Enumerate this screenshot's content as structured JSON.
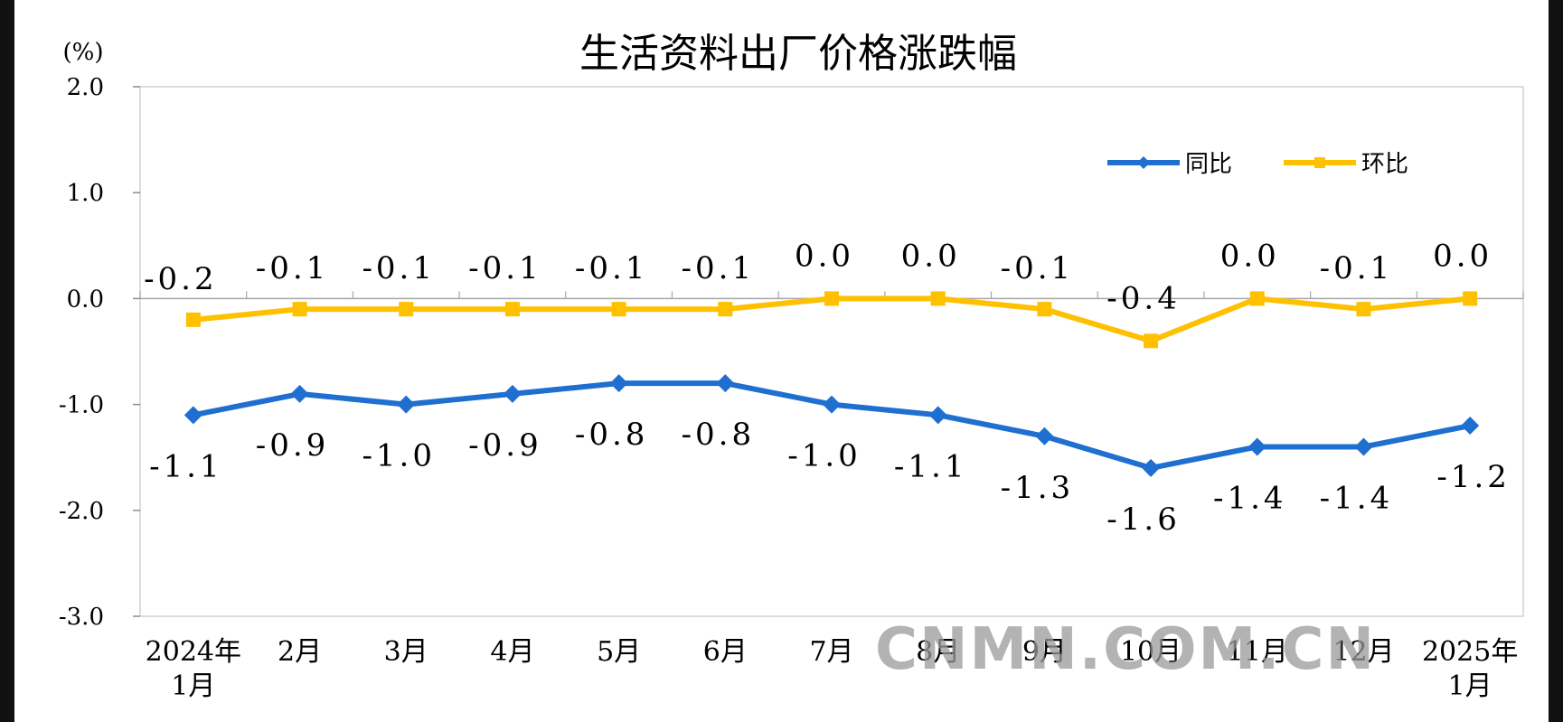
{
  "chart_data": {
    "type": "line",
    "title": "生活资料出厂价格涨跌幅",
    "ylabel": "(%)",
    "xlabel": "",
    "ylim": [
      -3.0,
      2.0
    ],
    "yticks": [
      "2.0",
      "1.0",
      "0.0",
      "-1.0",
      "-2.0",
      "-3.0"
    ],
    "categories": [
      [
        "2024年",
        "1月"
      ],
      [
        "2月"
      ],
      [
        "3月"
      ],
      [
        "4月"
      ],
      [
        "5月"
      ],
      [
        "6月"
      ],
      [
        "7月"
      ],
      [
        "8月"
      ],
      [
        "9月"
      ],
      [
        "10月"
      ],
      [
        "11月"
      ],
      [
        "12月"
      ],
      [
        "2025年",
        "1月"
      ]
    ],
    "series": [
      {
        "name": "同比",
        "color": "#1f6fd1",
        "marker": "diamond",
        "values": [
          -1.1,
          -0.9,
          -1.0,
          -0.9,
          -0.8,
          -0.8,
          -1.0,
          -1.1,
          -1.3,
          -1.6,
          -1.4,
          -1.4,
          -1.2
        ],
        "labels": [
          "-1.1",
          "-0.9",
          "-1.0",
          "-0.9",
          "-0.8",
          "-0.8",
          "-1.0",
          "-1.1",
          "-1.3",
          "-1.6",
          "-1.4",
          "-1.4",
          "-1.2"
        ]
      },
      {
        "name": "环比",
        "color": "#ffc000",
        "marker": "square",
        "values": [
          -0.2,
          -0.1,
          -0.1,
          -0.1,
          -0.1,
          -0.1,
          0.0,
          0.0,
          -0.1,
          -0.4,
          0.0,
          -0.1,
          0.0
        ],
        "labels": [
          "-0.2",
          "-0.1",
          "-0.1",
          "-0.1",
          "-0.1",
          "-0.1",
          "0.0",
          "0.0",
          "-0.1",
          "-0.4",
          "0.0",
          "-0.1",
          "0.0"
        ]
      }
    ],
    "legend_position": "top-right",
    "grid": false,
    "zero_line": true
  },
  "watermark": "CNMN.COM.CN"
}
